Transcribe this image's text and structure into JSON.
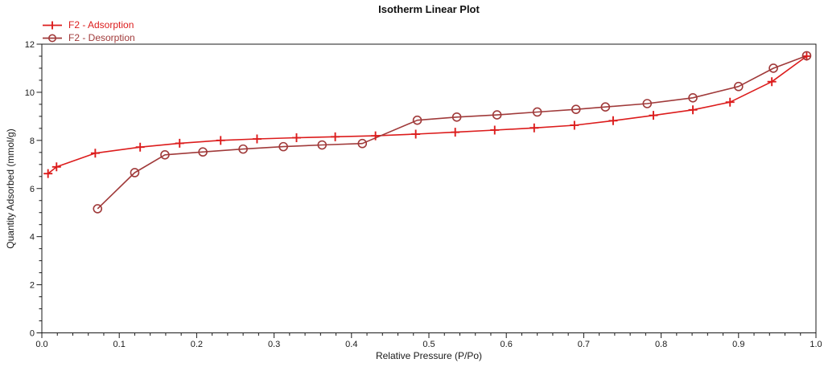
{
  "chart_data": {
    "type": "line",
    "title": "Isotherm Linear Plot",
    "xlabel": "Relative Pressure (P/Po)",
    "ylabel": "Quantity Adsorbed (mmol/g)",
    "xlim": [
      0.0,
      1.0
    ],
    "ylim": [
      0,
      12
    ],
    "x_major_ticks": [
      0.0,
      0.1,
      0.2,
      0.3,
      0.4,
      0.5,
      0.6,
      0.7,
      0.8,
      0.9,
      1.0
    ],
    "x_tick_labels": [
      "0.0",
      "0.1",
      "0.2",
      "0.3",
      "0.4",
      "0.5",
      "0.6",
      "0.7",
      "0.8",
      "0.9",
      "1.0"
    ],
    "x_minor_step": 0.02,
    "y_major_ticks": [
      0,
      2,
      4,
      6,
      8,
      10,
      12
    ],
    "y_tick_labels": [
      "0",
      "2",
      "4",
      "6",
      "8",
      "10",
      "12"
    ],
    "y_minor_step": 0.5,
    "grid": "off",
    "legend_position": "top-left",
    "axis_color": "#1a1a1a",
    "series": [
      {
        "name": "F2 - Adsorption",
        "marker": "plus",
        "color": "#dc1c1c",
        "points": [
          [
            0.008,
            6.62
          ],
          [
            0.019,
            6.9
          ],
          [
            0.069,
            7.47
          ],
          [
            0.127,
            7.72
          ],
          [
            0.178,
            7.88
          ],
          [
            0.231,
            8.0
          ],
          [
            0.278,
            8.06
          ],
          [
            0.329,
            8.11
          ],
          [
            0.379,
            8.15
          ],
          [
            0.431,
            8.19
          ],
          [
            0.483,
            8.26
          ],
          [
            0.534,
            8.34
          ],
          [
            0.585,
            8.43
          ],
          [
            0.636,
            8.52
          ],
          [
            0.688,
            8.63
          ],
          [
            0.738,
            8.82
          ],
          [
            0.79,
            9.04
          ],
          [
            0.841,
            9.27
          ],
          [
            0.889,
            9.59
          ],
          [
            0.943,
            10.44
          ],
          [
            0.988,
            11.5
          ]
        ]
      },
      {
        "name": "F2 - Desorption",
        "marker": "circle",
        "color": "#a03a3a",
        "points": [
          [
            0.988,
            11.52
          ],
          [
            0.945,
            11.0
          ],
          [
            0.9,
            10.24
          ],
          [
            0.841,
            9.77
          ],
          [
            0.782,
            9.53
          ],
          [
            0.728,
            9.39
          ],
          [
            0.69,
            9.29
          ],
          [
            0.64,
            9.18
          ],
          [
            0.588,
            9.06
          ],
          [
            0.536,
            8.97
          ],
          [
            0.485,
            8.84
          ],
          [
            0.414,
            7.87
          ],
          [
            0.362,
            7.81
          ],
          [
            0.312,
            7.74
          ],
          [
            0.26,
            7.64
          ],
          [
            0.208,
            7.52
          ],
          [
            0.159,
            7.4
          ],
          [
            0.12,
            6.66
          ],
          [
            0.072,
            5.16
          ]
        ]
      }
    ]
  }
}
